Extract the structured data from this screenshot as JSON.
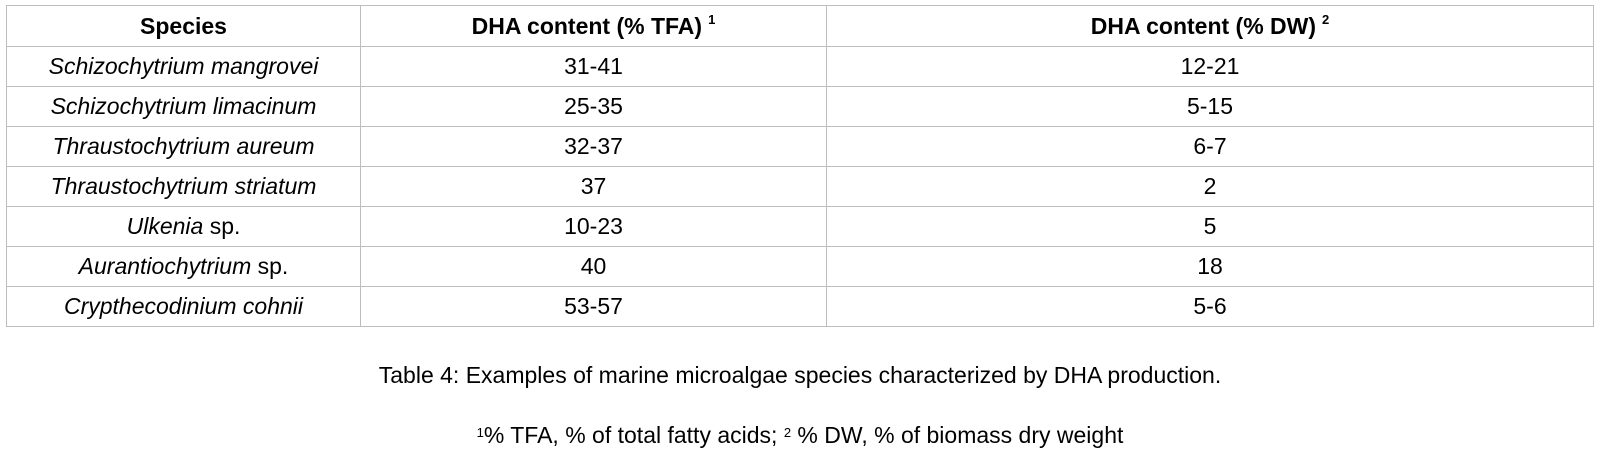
{
  "table": {
    "headers": [
      {
        "text": "Species",
        "sup": ""
      },
      {
        "text": "DHA content (% TFA)",
        "sup": "1"
      },
      {
        "text": "DHA content (% DW)",
        "sup": "2"
      }
    ],
    "rows": [
      {
        "species_italic": "Schizochytrium mangrovei",
        "species_suffix": "",
        "tfa": "31-41",
        "dw": "12-21"
      },
      {
        "species_italic": "Schizochytrium limacinum",
        "species_suffix": "",
        "tfa": "25-35",
        "dw": "5-15"
      },
      {
        "species_italic": "Thraustochytrium aureum",
        "species_suffix": "",
        "tfa": "32-37",
        "dw": "6-7"
      },
      {
        "species_italic": "Thraustochytrium striatum",
        "species_suffix": "",
        "tfa": "37",
        "dw": "2"
      },
      {
        "species_italic": "Ulkenia",
        "species_suffix": " sp.",
        "tfa": "10-23",
        "dw": "5"
      },
      {
        "species_italic": "Aurantiochytrium",
        "species_suffix": " sp.",
        "tfa": "40",
        "dw": "18"
      },
      {
        "species_italic": "Crypthecodinium cohnii",
        "species_suffix": "",
        "tfa": "53-57",
        "dw": "5-6"
      }
    ]
  },
  "caption": "Table 4: Examples of marine microalgae species characterized by DHA production.",
  "footnote": {
    "sup1": "1",
    "part1": "% TFA, % of total fatty acids; ",
    "sup2": "2",
    "part2": " % DW, % of biomass dry weight"
  }
}
